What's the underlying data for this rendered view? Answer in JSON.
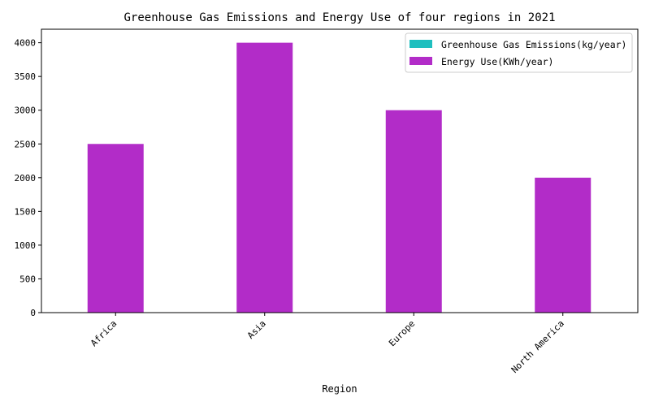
{
  "chart_data": {
    "type": "bar",
    "title": "Greenhouse Gas Emissions and Energy Use of four regions in 2021",
    "xlabel": "Region",
    "ylabel": "",
    "categories": [
      "Africa",
      "Asia",
      "Europe",
      "North America"
    ],
    "series": [
      {
        "name": "Greenhouse Gas Emissions(kg/year)",
        "color": "#1fbfbf",
        "values": [
          0,
          0,
          0,
          0
        ]
      },
      {
        "name": "Energy Use(KWh/year)",
        "color": "#b22cc8",
        "values": [
          2500,
          4000,
          3000,
          2000
        ]
      }
    ],
    "ylim": [
      0,
      4200
    ],
    "yticks": [
      0,
      500,
      1000,
      1500,
      2000,
      2500,
      3000,
      3500,
      4000
    ],
    "grid": false,
    "legend_position": "top-right"
  }
}
